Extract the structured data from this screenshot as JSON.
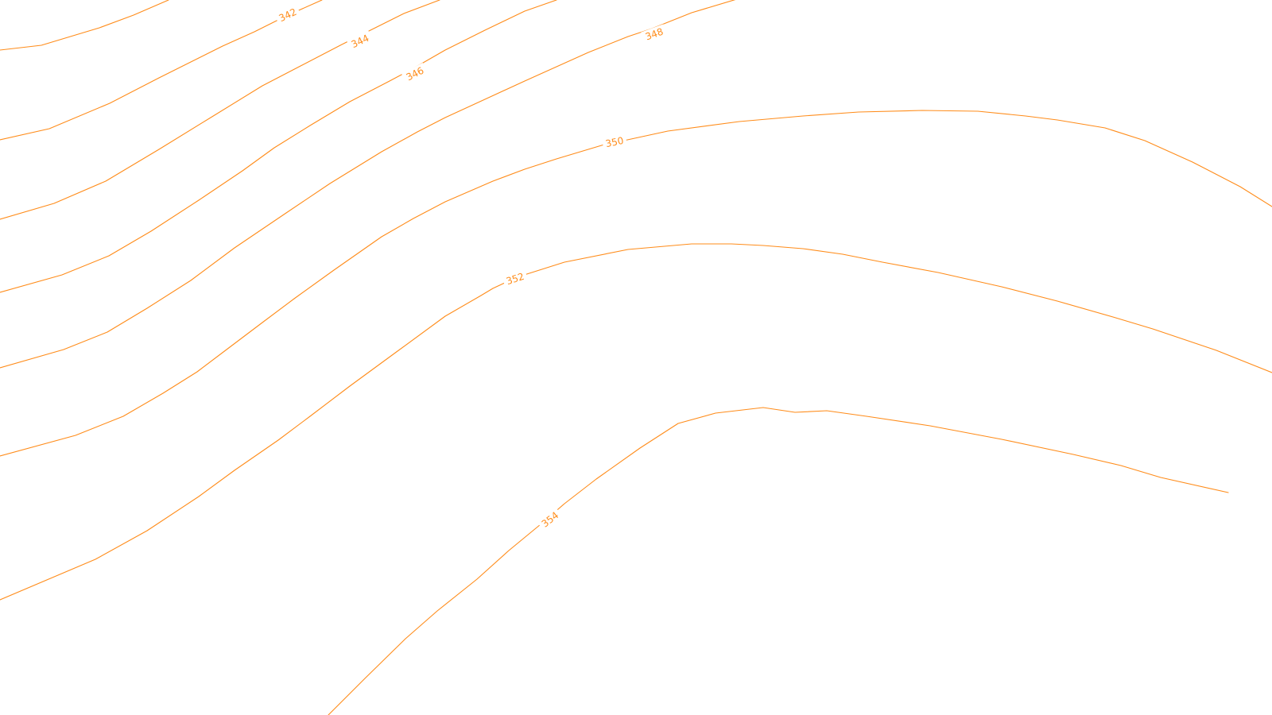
{
  "map": {
    "background_color": "#ffffff",
    "contour_color": "#ff8c1a",
    "label_bg_color": "#ffffff",
    "contour_labels": [
      {
        "id": "contour-342",
        "text": "342"
      },
      {
        "id": "contour-344",
        "text": "344"
      },
      {
        "id": "contour-346",
        "text": "346"
      },
      {
        "id": "contour-348",
        "text": "348"
      },
      {
        "id": "contour-350",
        "text": "350"
      },
      {
        "id": "contour-352",
        "text": "352"
      },
      {
        "id": "contour-354",
        "text": "354"
      }
    ]
  }
}
